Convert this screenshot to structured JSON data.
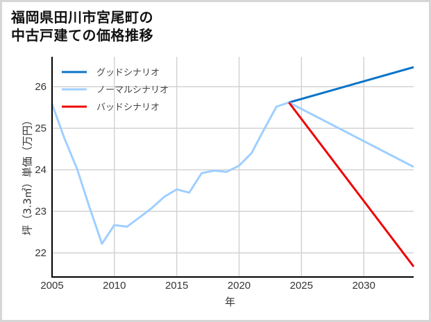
{
  "title": {
    "line1": "福岡県田川市宮尾町の",
    "line2": "中古戸建ての価格推移"
  },
  "colors": {
    "good": "#0a74c9",
    "normal": "#9fcfff",
    "bad": "#ee0000",
    "grid": "#d3d3d3",
    "axis": "#000000",
    "border": "#d6d6d6"
  },
  "chart_data": {
    "type": "line",
    "title": "福岡県田川市宮尾町の中古戸建ての価格推移",
    "xlabel": "年",
    "ylabel": "坪（3.3㎡）単価（万円）",
    "xlim": [
      2005,
      2034
    ],
    "ylim": [
      21.42,
      26.72
    ],
    "xticks": [
      2005,
      2010,
      2015,
      2020,
      2025,
      2030
    ],
    "yticks": [
      22,
      23,
      24,
      25,
      26
    ],
    "grid": true,
    "legend_position": "upper left",
    "legend": [
      "グッドシナリオ",
      "ノーマルシナリオ",
      "バッドシナリオ"
    ],
    "series": [
      {
        "name": "ノーマルシナリオ (実績)",
        "color": "#9fcfff",
        "x": [
          2005,
          2006,
          2007,
          2008,
          2009,
          2010,
          2011,
          2012,
          2013,
          2014,
          2015,
          2016,
          2017,
          2018,
          2019,
          2020,
          2021,
          2022,
          2023,
          2024
        ],
        "values": [
          25.58,
          24.75,
          24.03,
          23.1,
          22.22,
          22.67,
          22.63,
          22.85,
          23.08,
          23.35,
          23.53,
          23.45,
          23.92,
          23.98,
          23.95,
          24.1,
          24.4,
          24.97,
          25.52,
          25.62
        ]
      },
      {
        "name": "グッドシナリオ",
        "color": "#0a74c9",
        "x": [
          2024,
          2034
        ],
        "values": [
          25.62,
          26.47
        ]
      },
      {
        "name": "ノーマルシナリオ",
        "color": "#9fcfff",
        "x": [
          2024,
          2034
        ],
        "values": [
          25.62,
          24.07
        ]
      },
      {
        "name": "バッドシナリオ",
        "color": "#ee0000",
        "x": [
          2024,
          2034
        ],
        "values": [
          25.62,
          21.67
        ]
      }
    ]
  }
}
